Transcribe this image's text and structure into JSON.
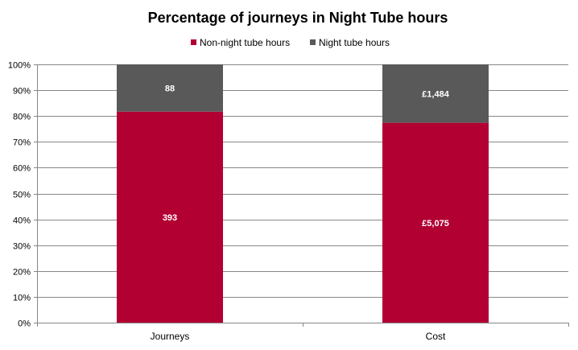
{
  "chart_data": {
    "type": "bar",
    "stacked": "percent",
    "title": "Percentage of journeys in Night Tube hours",
    "categories": [
      "Journeys",
      "Cost"
    ],
    "series": [
      {
        "name": "Non-night tube hours",
        "color": "#B20033",
        "values": [
          393,
          5075
        ],
        "labels": [
          "393",
          "£5,075"
        ]
      },
      {
        "name": "Night tube hours",
        "color": "#595959",
        "values": [
          88,
          1484
        ],
        "labels": [
          "88",
          "£1,484"
        ]
      }
    ],
    "ylim": [
      0,
      100
    ],
    "yticks": [
      "0%",
      "10%",
      "20%",
      "30%",
      "40%",
      "50%",
      "60%",
      "70%",
      "80%",
      "90%",
      "100%"
    ],
    "grid": true,
    "legend_position": "top"
  }
}
